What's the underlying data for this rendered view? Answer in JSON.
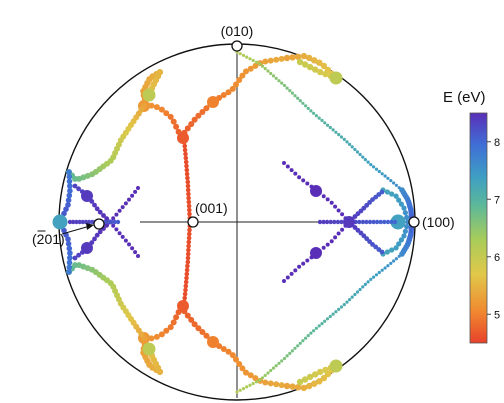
{
  "chart_data": {
    "type": "scatter",
    "title": "",
    "projection": "stereographic",
    "colorbar": {
      "label": "E (eV)",
      "range": [
        4.5,
        8.5
      ],
      "ticks": [
        "5",
        "6",
        "7",
        "8"
      ],
      "colormap": [
        "#e8412b",
        "#f08a30",
        "#e0c84a",
        "#a8cc5a",
        "#5cb89a",
        "#3f9fc3",
        "#3f6fd6",
        "#5a2fb8"
      ]
    },
    "poles": [
      {
        "label": "(010)"
      },
      {
        "label": "(001)"
      },
      {
        "label": "(100)"
      },
      {
        "label": "(201)",
        "bar_over": "2"
      }
    ],
    "grid": true,
    "legend": "right"
  }
}
